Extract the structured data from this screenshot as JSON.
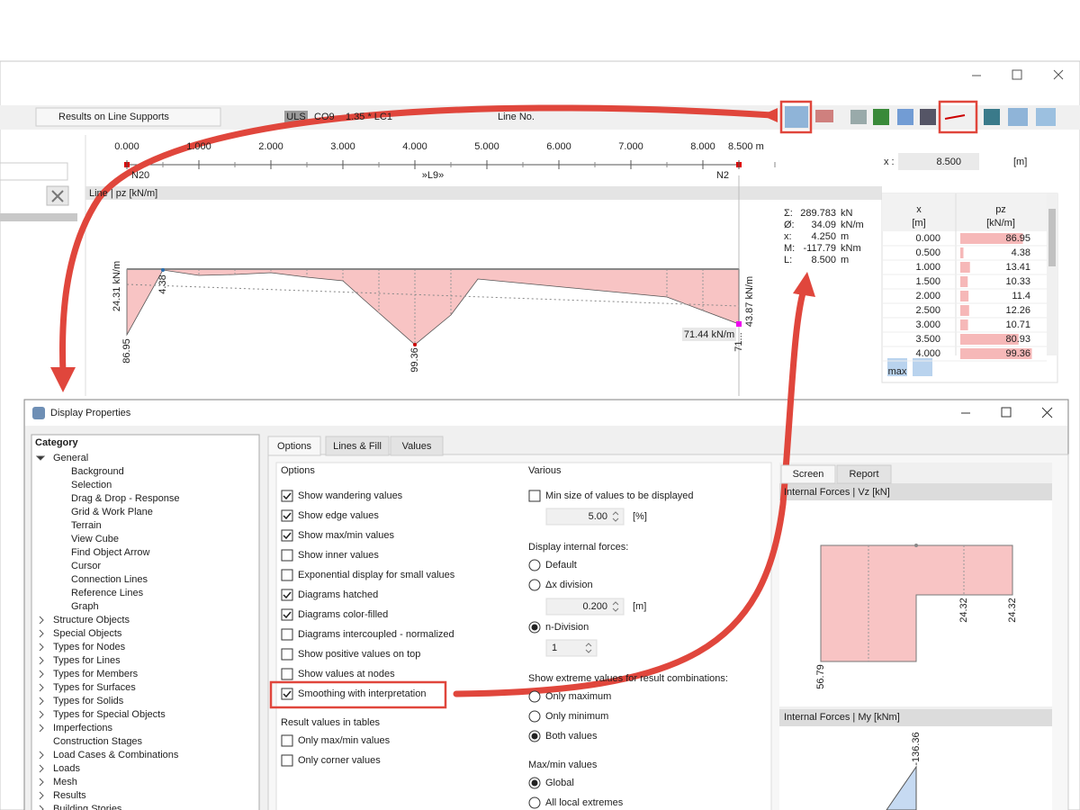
{
  "toolbar": {
    "result_type": "Results on Line Supports",
    "design_situation": "ULS",
    "combination": "CO9",
    "combination_formula": "1.35 * LC1",
    "object_selector": "Line No."
  },
  "ruler": {
    "ticks": [
      "0.000",
      "1.000",
      "2.000",
      "3.000",
      "4.000",
      "5.000",
      "6.000",
      "7.000",
      "8.000",
      "8.500 m"
    ],
    "start_node": "N20",
    "line": "»L9»",
    "end_node": "N2"
  },
  "x_control": {
    "label": "x :",
    "value": "8.500",
    "unit": "[m]"
  },
  "diagram": {
    "header": "Line | pz [kN/m]",
    "start_value": "86.95",
    "start_resultant": "24.31 kN/m",
    "local_min": "4.38",
    "max_value": "99.36",
    "end_box": "71.44 kN/m",
    "end_resultant": "43.87 kN/m",
    "end_value": "71..."
  },
  "summary": {
    "rows": [
      [
        "Σ:",
        "289.783",
        "kN"
      ],
      [
        "Ø:",
        "34.09",
        "kN/m"
      ],
      [
        "x:",
        "4.250",
        "m"
      ],
      [
        "M:",
        "-117.79",
        "kNm"
      ],
      [
        "L:",
        "8.500",
        "m"
      ]
    ]
  },
  "table": {
    "headers": [
      [
        "x",
        "[m]"
      ],
      [
        "pz",
        "[kN/m]"
      ]
    ],
    "rows": [
      [
        "0.000",
        86.95
      ],
      [
        "0.500",
        4.38
      ],
      [
        "1.000",
        13.41
      ],
      [
        "1.500",
        10.33
      ],
      [
        "2.000",
        11.4
      ],
      [
        "2.500",
        12.26
      ],
      [
        "3.000",
        10.71
      ],
      [
        "3.500",
        80.93
      ],
      [
        "4.000",
        99.36
      ]
    ],
    "filter_label": "max"
  },
  "dialog": {
    "title": "Display Properties",
    "category_heading": "Category",
    "tree": [
      {
        "label": "General",
        "level": 0,
        "expandable": true
      },
      {
        "label": "Background",
        "level": 1
      },
      {
        "label": "Selection",
        "level": 1
      },
      {
        "label": "Drag & Drop - Response",
        "level": 1
      },
      {
        "label": "Grid & Work Plane",
        "level": 1
      },
      {
        "label": "Terrain",
        "level": 1
      },
      {
        "label": "View Cube",
        "level": 1
      },
      {
        "label": "Find Object Arrow",
        "level": 1
      },
      {
        "label": "Cursor",
        "level": 1
      },
      {
        "label": "Connection Lines",
        "level": 1
      },
      {
        "label": "Reference Lines",
        "level": 1
      },
      {
        "label": "Graph",
        "level": 1
      },
      {
        "label": "Structure Objects",
        "level": 0,
        "expandable": true
      },
      {
        "label": "Special Objects",
        "level": 0,
        "expandable": true
      },
      {
        "label": "Types for Nodes",
        "level": 0,
        "expandable": true
      },
      {
        "label": "Types for Lines",
        "level": 0,
        "expandable": true
      },
      {
        "label": "Types for Members",
        "level": 0,
        "expandable": true
      },
      {
        "label": "Types for Surfaces",
        "level": 0,
        "expandable": true
      },
      {
        "label": "Types for Solids",
        "level": 0,
        "expandable": true
      },
      {
        "label": "Types for Special Objects",
        "level": 0,
        "expandable": true
      },
      {
        "label": "Imperfections",
        "level": 0,
        "expandable": true
      },
      {
        "label": "Construction Stages",
        "level": 0,
        "expandable": false
      },
      {
        "label": "Load Cases & Combinations",
        "level": 0,
        "expandable": true
      },
      {
        "label": "Loads",
        "level": 0,
        "expandable": true
      },
      {
        "label": "Mesh",
        "level": 0,
        "expandable": true
      },
      {
        "label": "Results",
        "level": 0,
        "expandable": true
      },
      {
        "label": "Building Stories",
        "level": 0,
        "expandable": true
      }
    ],
    "tabs": [
      "Options",
      "Lines & Fill",
      "Values"
    ],
    "options_heading": "Options",
    "options": [
      {
        "label": "Show wandering values",
        "checked": true
      },
      {
        "label": "Show edge values",
        "checked": true
      },
      {
        "label": "Show max/min values",
        "checked": true
      },
      {
        "label": "Show inner values",
        "checked": false
      },
      {
        "label": "Exponential display for small values",
        "checked": false
      },
      {
        "label": "Diagrams hatched",
        "checked": true
      },
      {
        "label": "Diagrams color-filled",
        "checked": true
      },
      {
        "label": "Diagrams intercoupled - normalized",
        "checked": false
      },
      {
        "label": "Show positive values on top",
        "checked": false
      },
      {
        "label": "Show values at nodes",
        "checked": false
      },
      {
        "label": "Smoothing with interpretation",
        "checked": true
      }
    ],
    "tables_heading": "Result values in tables",
    "table_options": [
      {
        "label": "Only max/min values",
        "checked": false
      },
      {
        "label": "Only corner values",
        "checked": false
      }
    ],
    "various_heading": "Various",
    "min_size": {
      "label": "Min size of values to be displayed",
      "checked": false,
      "value": "5.00",
      "unit": "[%]"
    },
    "internal_forces": {
      "heading": "Display internal forces:",
      "default": {
        "label": "Default",
        "selected": false
      },
      "dx": {
        "label": "Δx division",
        "selected": false,
        "value": "0.200",
        "unit": "[m]"
      },
      "n_division": {
        "label": "n-Division",
        "selected": true,
        "value": "1"
      }
    },
    "extremes": {
      "heading": "Show extreme values for result combinations:",
      "options": [
        {
          "label": "Only maximum",
          "selected": false
        },
        {
          "label": "Only minimum",
          "selected": false
        },
        {
          "label": "Both values",
          "selected": true
        }
      ]
    },
    "maxmin": {
      "heading": "Max/min values",
      "options": [
        {
          "label": "Global",
          "selected": true
        },
        {
          "label": "All local extremes",
          "selected": false
        }
      ]
    },
    "preview": {
      "tabs": [
        "Screen",
        "Report"
      ],
      "panel_1": {
        "title": "Internal Forces | Vz [kN]",
        "labels": [
          "56.79",
          "24.32",
          "24.32"
        ]
      },
      "panel_2": {
        "title": "Internal Forces | My [kNm]",
        "labels": [
          "-136.36"
        ]
      }
    }
  }
}
